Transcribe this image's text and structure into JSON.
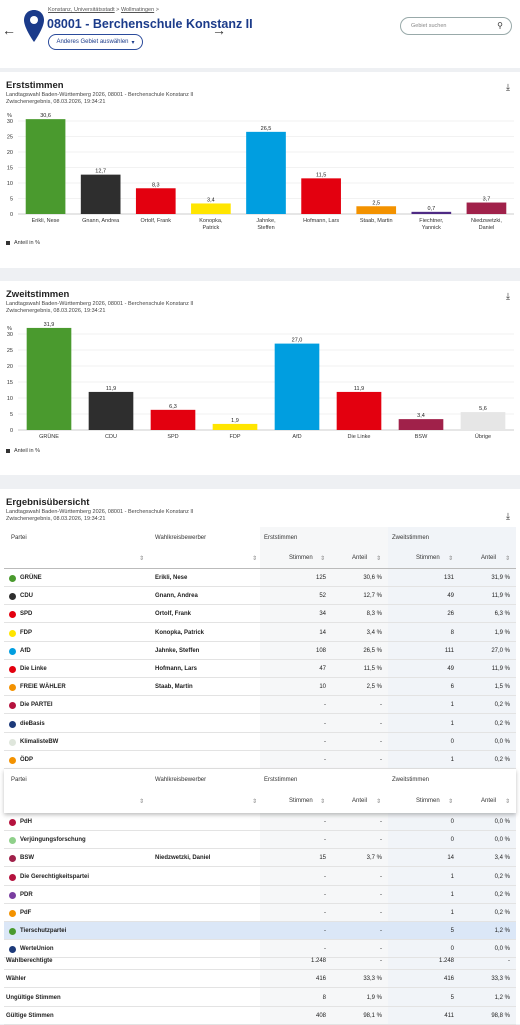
{
  "header": {
    "breadcrumb": [
      "Konstanz, Universitätsstadt",
      "Wollmatingen"
    ],
    "title": "08001 - Berchenschule Konstanz II",
    "area_button": "Anderes Gebiet auswählen",
    "search_placeholder": "Gebiet suchen"
  },
  "erst": {
    "title": "Erststimmen",
    "sub1": "Landtagswahl Baden-Württemberg 2026, 08001 - Berchenschule Konstanz II",
    "sub2": "Zwischenergebnis, 08.03.2026, 19:34:21",
    "legend": "Anteil in %"
  },
  "zweit": {
    "title": "Zweitstimmen",
    "sub1": "Landtagswahl Baden-Württemberg 2026, 08001 - Berchenschule Konstanz II",
    "sub2": "Zwischenergebnis, 08.03.2026, 19:34:21",
    "legend": "Anteil in %"
  },
  "chart_data": [
    {
      "type": "bar",
      "title": "Erststimmen",
      "ylabel": "%",
      "ylim": [
        0,
        30
      ],
      "yticks": [
        0,
        5,
        10,
        15,
        20,
        25,
        30
      ],
      "categories": [
        "Erikli, Nese",
        "Gnann, Andrea",
        "Ortolf, Frank",
        "Konopka, Patrick",
        "Jahnke, Steffen",
        "Hofmann, Lars",
        "Staab, Martin",
        "Fiechtner, Yannick",
        "Niedzwetzki, Daniel"
      ],
      "values": [
        30.6,
        12.7,
        8.3,
        3.4,
        26.5,
        11.5,
        2.5,
        0.7,
        3.7
      ],
      "labels": [
        "30,6",
        "12,7",
        "8,3",
        "3,4",
        "26,5",
        "11,5",
        "2,5",
        "0,7",
        "3,7"
      ],
      "colors": [
        "#4a9a2e",
        "#2e2e2e",
        "#e3000f",
        "#ffe500",
        "#009ee0",
        "#e3000f",
        "#f39200",
        "#4e2a84",
        "#a0214a"
      ],
      "legend": "Anteil in %"
    },
    {
      "type": "bar",
      "title": "Zweitstimmen",
      "ylabel": "%",
      "ylim": [
        0,
        30
      ],
      "yticks": [
        0,
        5,
        10,
        15,
        20,
        25,
        30
      ],
      "categories": [
        "GRÜNE",
        "CDU",
        "SPD",
        "FDP",
        "AfD",
        "Die Linke",
        "BSW",
        "Übrige"
      ],
      "values": [
        31.9,
        11.9,
        6.3,
        1.9,
        27.0,
        11.9,
        3.4,
        5.6
      ],
      "labels": [
        "31,9",
        "11,9",
        "6,3",
        "1,9",
        "27,0",
        "11,9",
        "3,4",
        "5,6"
      ],
      "colors": [
        "#4a9a2e",
        "#2e2e2e",
        "#e3000f",
        "#ffe500",
        "#009ee0",
        "#e3000f",
        "#a0214a",
        "#e6e6e6"
      ],
      "legend": "Anteil in %"
    }
  ],
  "overview": {
    "title": "Ergebnisübersicht",
    "sub1": "Landtagswahl Baden-Württemberg 2026, 08001 - Berchenschule Konstanz II",
    "sub2": "Zwischenergebnis, 08.03.2026, 19:34:21",
    "headers": {
      "partei": "Partei",
      "bewerber": "Wahlkreisbewerber",
      "erst": "Erststimmen",
      "zweit": "Zweitstimmen",
      "stimmen": "Stimmen",
      "anteil": "Anteil"
    },
    "rows_top": [
      {
        "party": "GRÜNE",
        "color": "#4a9a2e",
        "cand": "Erikli, Nese",
        "es": "125",
        "ea": "30,6 %",
        "zs": "131",
        "za": "31,9 %"
      },
      {
        "party": "CDU",
        "color": "#2e2e2e",
        "cand": "Gnann, Andrea",
        "es": "52",
        "ea": "12,7 %",
        "zs": "49",
        "za": "11,9 %"
      },
      {
        "party": "SPD",
        "color": "#e3000f",
        "cand": "Ortolf, Frank",
        "es": "34",
        "ea": "8,3 %",
        "zs": "26",
        "za": "6,3 %"
      },
      {
        "party": "FDP",
        "color": "#ffe500",
        "cand": "Konopka, Patrick",
        "es": "14",
        "ea": "3,4 %",
        "zs": "8",
        "za": "1,9 %"
      },
      {
        "party": "AfD",
        "color": "#009ee0",
        "cand": "Jahnke, Steffen",
        "es": "108",
        "ea": "26,5 %",
        "zs": "111",
        "za": "27,0 %"
      },
      {
        "party": "Die Linke",
        "color": "#e3000f",
        "cand": "Hofmann, Lars",
        "es": "47",
        "ea": "11,5 %",
        "zs": "49",
        "za": "11,9 %"
      },
      {
        "party": "FREIE WÄHLER",
        "color": "#f39200",
        "cand": "Staab, Martin",
        "es": "10",
        "ea": "2,5 %",
        "zs": "6",
        "za": "1,5 %"
      },
      {
        "party": "Die PARTEI",
        "color": "#b5123e",
        "cand": "",
        "es": "-",
        "ea": "-",
        "zs": "1",
        "za": "0,2 %"
      },
      {
        "party": "dieBasis",
        "color": "#1d3a7a",
        "cand": "",
        "es": "-",
        "ea": "-",
        "zs": "1",
        "za": "0,2 %"
      },
      {
        "party": "KlimalisteBW",
        "color": "#dfe6dc",
        "cand": "",
        "es": "-",
        "ea": "-",
        "zs": "0",
        "za": "0,0 %"
      },
      {
        "party": "ÖDP",
        "color": "#f39200",
        "cand": "",
        "es": "-",
        "ea": "-",
        "zs": "1",
        "za": "0,2 %"
      }
    ],
    "rows_bottom": [
      {
        "party": "PdH",
        "color": "#b5123e",
        "cand": "",
        "es": "-",
        "ea": "-",
        "zs": "0",
        "za": "0,0 %"
      },
      {
        "party": "Verjüngungsforschung",
        "color": "#8fd08a",
        "cand": "",
        "es": "-",
        "ea": "-",
        "zs": "0",
        "za": "0,0 %"
      },
      {
        "party": "BSW",
        "color": "#a0214a",
        "cand": "Niedzwetzki, Daniel",
        "es": "15",
        "ea": "3,7 %",
        "zs": "14",
        "za": "3,4 %"
      },
      {
        "party": "Die Gerechtigkeitspartei",
        "color": "#b5123e",
        "cand": "",
        "es": "-",
        "ea": "-",
        "zs": "1",
        "za": "0,2 %"
      },
      {
        "party": "PDR",
        "color": "#7a3ea0",
        "cand": "",
        "es": "-",
        "ea": "-",
        "zs": "1",
        "za": "0,2 %"
      },
      {
        "party": "PdF",
        "color": "#f39200",
        "cand": "",
        "es": "-",
        "ea": "-",
        "zs": "1",
        "za": "0,2 %"
      },
      {
        "party": "Tierschutzpartei",
        "color": "#4a9a2e",
        "cand": "",
        "es": "-",
        "ea": "-",
        "zs": "5",
        "za": "1,2 %"
      },
      {
        "party": "WerteUnion",
        "color": "#1d3a7a",
        "cand": "",
        "es": "-",
        "ea": "-",
        "zs": "0",
        "za": "0,0 %"
      }
    ],
    "summary": [
      {
        "label": "Wahlberechtigte",
        "es": "1.248",
        "ea": "-",
        "zs": "1.248",
        "za": "-"
      },
      {
        "label": "Wähler",
        "es": "416",
        "ea": "33,3 %",
        "zs": "416",
        "za": "33,3 %"
      },
      {
        "label": "Ungültige Stimmen",
        "es": "8",
        "ea": "1,9 %",
        "zs": "5",
        "za": "1,2 %"
      },
      {
        "label": "Gültige Stimmen",
        "es": "408",
        "ea": "98,1 %",
        "zs": "411",
        "za": "98,8 %"
      }
    ]
  }
}
